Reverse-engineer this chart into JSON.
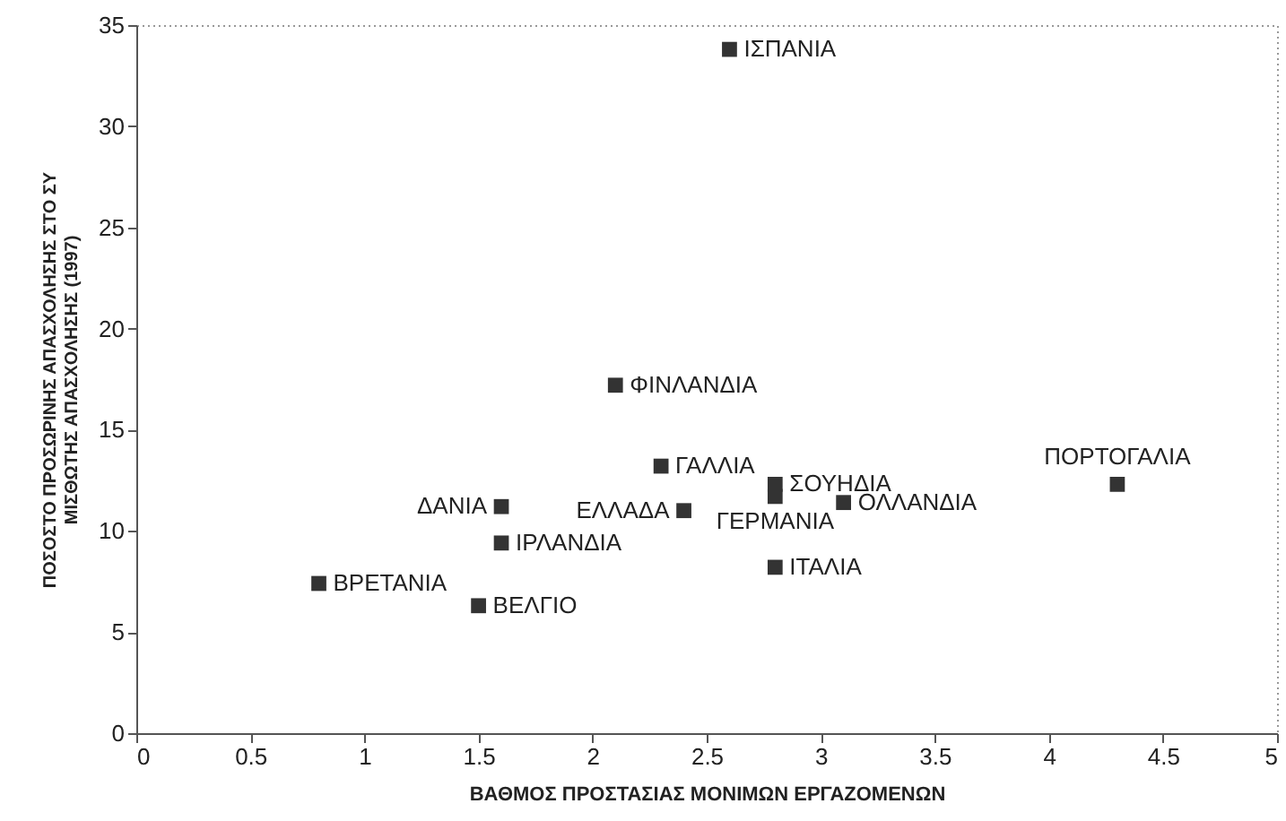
{
  "chart_data": {
    "type": "scatter",
    "xlabel": "ΒΑΘΜΟΣ ΠΡΟΣΤΑΣΙΑΣ ΜΟΝΙΜΩΝ ΕΡΓΑΖΟΜΕΝΩΝ",
    "ylabel": "ΠΟΣΟΣΤΟ ΠΡΟΣΩΡΙΝΗΣ ΑΠΑΣΧΟΛΗΣΗΣ ΣΤΟ ΣΥ\nΜΙΣΘΩΤΗΣ ΑΠΑΣΧΟΛΗΣΗΣ (1997)",
    "series": [
      {
        "color": "#333333",
        "x": [
          2.6,
          2.1,
          2.3,
          2.4,
          2.8,
          2.8,
          3.1,
          2.8,
          4.3,
          1.6,
          1.6,
          0.8,
          1.5
        ],
        "values": [
          33.8,
          17.2,
          13.2,
          11.0,
          12.3,
          11.7,
          11.4,
          8.2,
          12.3,
          11.2,
          9.4,
          7.4,
          6.3
        ]
      }
    ],
    "annotations": [
      {
        "text": "ΙΣΠΑΝΙΑ",
        "x": 2.6,
        "y": 33.8
      },
      {
        "text": "ΦΙΝΛΑΝΔΙΑ",
        "x": 2.1,
        "y": 17.2
      },
      {
        "text": "ΓΑΛΛΙΑ",
        "x": 2.3,
        "y": 13.2
      },
      {
        "text": "ΕΛΛΑΔΑ",
        "x": 2.4,
        "y": 11.0
      },
      {
        "text": "ΣΟΥΗΔΙΑ",
        "x": 2.8,
        "y": 12.3
      },
      {
        "text": "ΓΕΡΜΑΝΙΑ",
        "x": 2.8,
        "y": 11.7
      },
      {
        "text": "ΟΛΛΑΝΔΙΑ",
        "x": 3.1,
        "y": 11.4
      },
      {
        "text": "ΙΤΑΛΙΑ",
        "x": 2.8,
        "y": 8.2
      },
      {
        "text": "ΠΟΡΤΟΓΑΛΙΑ",
        "x": 4.3,
        "y": 12.3
      },
      {
        "text": "ΔΑΝΙΑ",
        "x": 1.6,
        "y": 11.2
      },
      {
        "text": "ΙΡΛΑΝΔΙΑ",
        "x": 1.6,
        "y": 9.4
      },
      {
        "text": "ΒΡΕΤΑΝΙΑ",
        "x": 0.8,
        "y": 7.4
      },
      {
        "text": "ΒΕΛΓΙΟ",
        "x": 1.5,
        "y": 6.3
      }
    ],
    "xlim": [
      0,
      5
    ],
    "xticks": [
      0,
      0.5,
      1,
      1.5,
      2,
      2.5,
      3,
      3.5,
      4,
      4.5,
      5
    ],
    "ylim": [
      0,
      35
    ],
    "yticks": [
      0,
      5,
      10,
      15,
      20,
      25,
      30,
      35
    ],
    "marker": "square",
    "grid": false
  }
}
